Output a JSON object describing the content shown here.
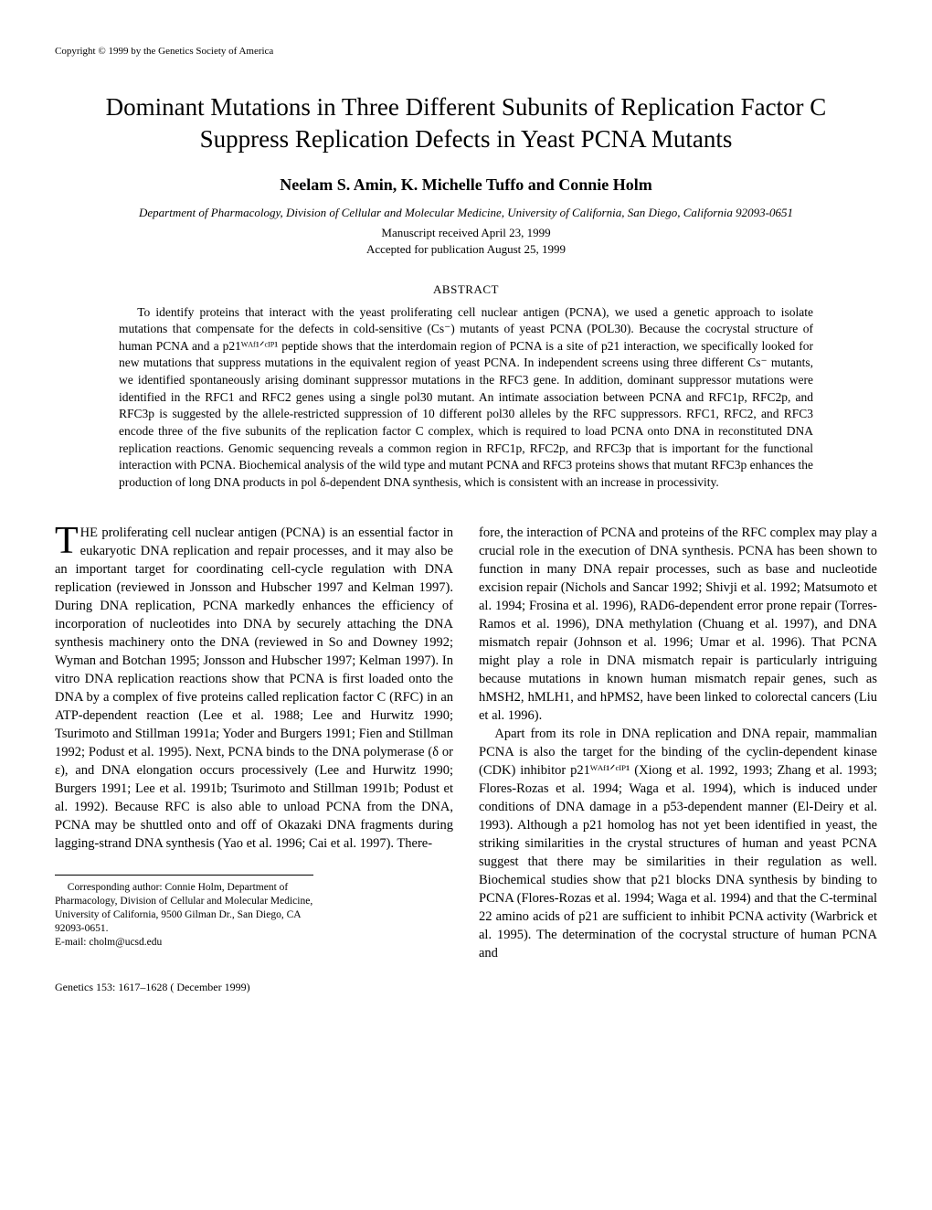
{
  "copyright": "Copyright © 1999 by the Genetics Society of America",
  "title_line1": "Dominant Mutations in Three Different Subunits of Replication Factor C",
  "title_line2": "Suppress Replication Defects in Yeast PCNA Mutants",
  "authors": "Neelam S. Amin, K. Michelle Tuffo and Connie Holm",
  "affiliation": "Department of Pharmacology, Division of Cellular and Molecular Medicine, University of California, San Diego, California 92093-0651",
  "received": "Manuscript received April 23, 1999",
  "accepted": "Accepted for publication August 25, 1999",
  "abstract_head": "ABSTRACT",
  "abstract_body": "To identify proteins that interact with the yeast proliferating cell nuclear antigen (PCNA), we used a genetic approach to isolate mutations that compensate for the defects in cold-sensitive (Cs⁻) mutants of yeast PCNA (POL30). Because the cocrystal structure of human PCNA and a p21ᵂᴬᶠ¹ᐟᶜᴵᴾ¹ peptide shows that the interdomain region of PCNA is a site of p21 interaction, we specifically looked for new mutations that suppress mutations in the equivalent region of yeast PCNA. In independent screens using three different Cs⁻ mutants, we identified spontaneously arising dominant suppressor mutations in the RFC3 gene. In addition, dominant suppressor mutations were identified in the RFC1 and RFC2 genes using a single pol30 mutant. An intimate association between PCNA and RFC1p, RFC2p, and RFC3p is suggested by the allele-restricted suppression of 10 different pol30 alleles by the RFC suppressors. RFC1, RFC2, and RFC3 encode three of the five subunits of the replication factor C complex, which is required to load PCNA onto DNA in reconstituted DNA replication reactions. Genomic sequencing reveals a common region in RFC1p, RFC2p, and RFC3p that is important for the functional interaction with PCNA. Biochemical analysis of the wild type and mutant PCNA and RFC3 proteins shows that mutant RFC3p enhances the production of long DNA products in pol δ-dependent DNA synthesis, which is consistent with an increase in processivity.",
  "col1_first": "HE proliferating cell nuclear antigen (PCNA) is an essential factor in eukaryotic DNA replication and repair processes, and it may also be an important target for coordinating cell-cycle regulation with DNA replication (reviewed in Jonsson and Hubscher 1997 and Kelman 1997). During DNA replication, PCNA markedly enhances the efficiency of incorporation of nucleotides into DNA by securely attaching the DNA synthesis machinery onto the DNA (reviewed in So and Downey 1992; Wyman and Botchan 1995; Jonsson and Hubscher 1997; Kelman 1997). In vitro DNA replication reactions show that PCNA is first loaded onto the DNA by a complex of five proteins called replication factor C (RFC) in an ATP-dependent reaction (Lee et al. 1988; Lee and Hurwitz 1990; Tsurimoto and Stillman 1991a; Yoder and Burgers 1991; Fien and Stillman 1992; Podust et al. 1995). Next, PCNA binds to the DNA polymerase (δ or ε), and DNA elongation occurs processively (Lee and Hurwitz 1990; Burgers 1991; Lee et al. 1991b; Tsurimoto and Stillman 1991b; Podust et al. 1992). Because RFC is also able to unload PCNA from the DNA, PCNA may be shuttled onto and off of Okazaki DNA fragments during lagging-strand DNA synthesis (Yao et al. 1996; Cai et al. 1997). There-",
  "col2_p1": "fore, the interaction of PCNA and proteins of the RFC complex may play a crucial role in the execution of DNA synthesis. PCNA has been shown to function in many DNA repair processes, such as base and nucleotide excision repair (Nichols and Sancar 1992; Shivji et al. 1992; Matsumoto et al. 1994; Frosina et al. 1996), RAD6-dependent error prone repair (Torres-Ramos et al. 1996), DNA methylation (Chuang et al. 1997), and DNA mismatch repair (Johnson et al. 1996; Umar et al. 1996). That PCNA might play a role in DNA mismatch repair is particularly intriguing because mutations in known human mismatch repair genes, such as hMSH2, hMLH1, and hPMS2, have been linked to colorectal cancers (Liu et al. 1996).",
  "col2_p2": "Apart from its role in DNA replication and DNA repair, mammalian PCNA is also the target for the binding of the cyclin-dependent kinase (CDK) inhibitor p21ᵂᴬᶠ¹ᐟᶜᴵᴾ¹ (Xiong et al. 1992, 1993; Zhang et al. 1993; Flores-Rozas et al. 1994; Waga et al. 1994), which is induced under conditions of DNA damage in a p53-dependent manner (El-Deiry et al. 1993). Although a p21 homolog has not yet been identified in yeast, the striking similarities in the crystal structures of human and yeast PCNA suggest that there may be similarities in their regulation as well. Biochemical studies show that p21 blocks DNA synthesis by binding to PCNA (Flores-Rozas et al. 1994; Waga et al. 1994) and that the C-terminal 22 amino acids of p21 are sufficient to inhibit PCNA activity (Warbrick et al. 1995). The determination of the cocrystal structure of human PCNA and",
  "corresponding": "Corresponding author: Connie Holm, Department of Pharmacology, Division of Cellular and Molecular Medicine, University of California, 9500 Gilman Dr., San Diego, CA 92093-0651.",
  "email": "E-mail: cholm@ucsd.edu",
  "footer": "Genetics 153: 1617–1628 ( December 1999)"
}
